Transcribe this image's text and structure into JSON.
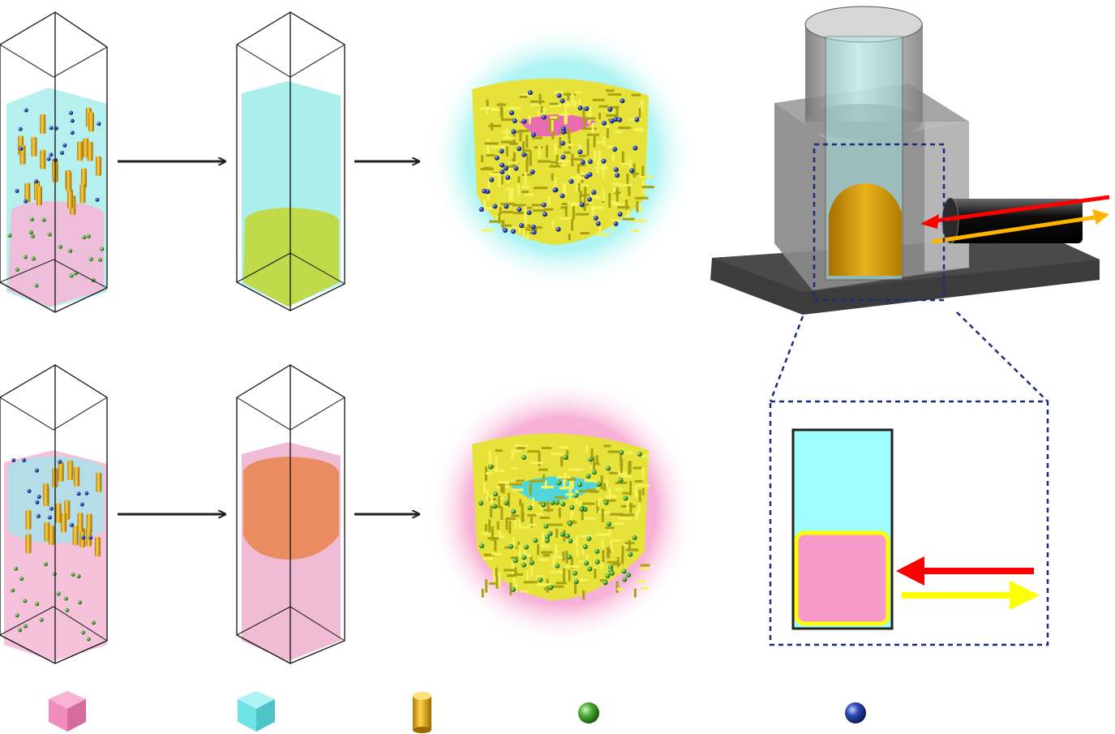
{
  "colors": {
    "pink_phase": "#f49ac8",
    "cyan_phase": "#8ff2f0",
    "rod_gold": "#e8b21a",
    "particle_green": "#3d9a2a",
    "particle_blue": "#243a9c",
    "particle_yellow_shell": "#e8ec4a",
    "arrow_dark": "#231f20",
    "incident_red": "#ff0000",
    "reflected_yellow": "#ffff00",
    "frame_navy": "#1e2a7a",
    "orange_mix": "#e98a55"
  },
  "rows": [
    {
      "name": "top-row",
      "halo": "cyan",
      "core": "pink",
      "surface_particles": "blue"
    },
    {
      "name": "bottom-row",
      "halo": "pink",
      "core": "cyan",
      "surface_particles": "green"
    }
  ],
  "legend": [
    {
      "name": "pink-cube-icon",
      "shape": "cube",
      "color": "#f08cbf"
    },
    {
      "name": "cyan-cube-icon",
      "shape": "cube",
      "color": "#6fe3e6"
    },
    {
      "name": "gold-rod-icon",
      "shape": "cylinder",
      "color": "#e8b21a"
    },
    {
      "name": "green-sphere-icon",
      "shape": "sphere",
      "color": "#3d9a2a"
    },
    {
      "name": "blue-sphere-icon",
      "shape": "sphere",
      "color": "#243a9c"
    }
  ]
}
